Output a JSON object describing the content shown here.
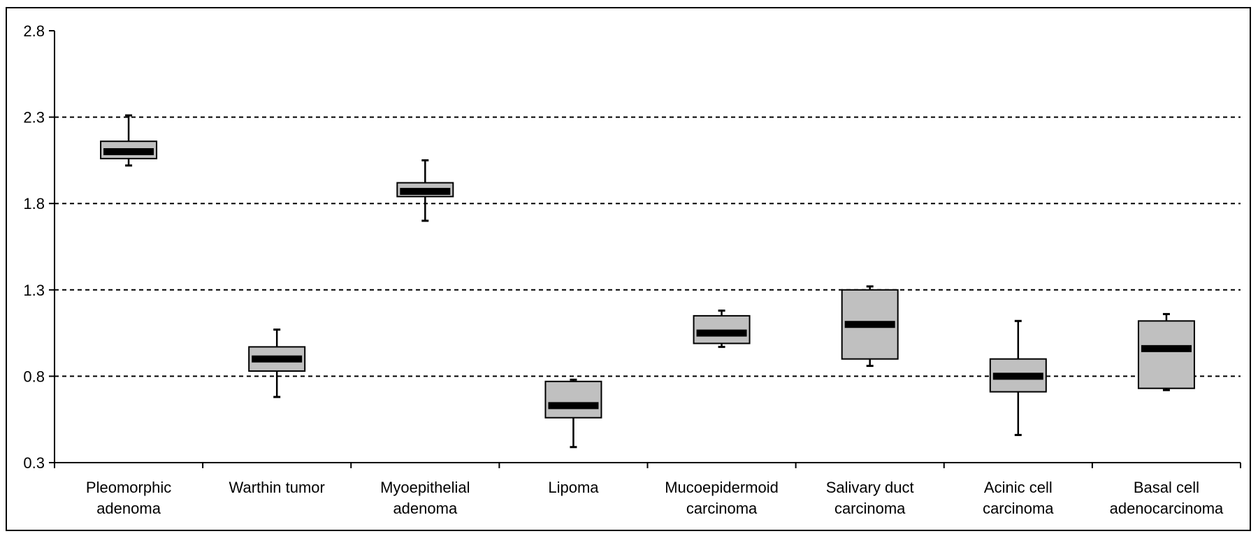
{
  "chart_data": {
    "type": "box",
    "title": "",
    "xlabel": "",
    "ylabel": "",
    "ylim": [
      0.3,
      2.8
    ],
    "yticks": [
      "0.3",
      "0.8",
      "1.3",
      "1.8",
      "2.3",
      "2.8"
    ],
    "grid": "horizontal dashed at 0.8, 1.3, 1.8, 2.3",
    "categories": [
      [
        "Pleomorphic",
        "adenoma"
      ],
      [
        "Warthin tumor"
      ],
      [
        "Myoepithelial",
        "adenoma"
      ],
      [
        "Lipoma"
      ],
      [
        "Mucoepidermoid",
        "carcinoma"
      ],
      [
        "Salivary duct",
        "carcinoma"
      ],
      [
        "Acinic cell",
        "carcinoma"
      ],
      [
        "Basal cell",
        "adenocarcinoma"
      ]
    ],
    "boxes": [
      {
        "min": 2.02,
        "q1": 2.06,
        "median": 2.1,
        "q3": 2.16,
        "max": 2.31
      },
      {
        "min": 0.68,
        "q1": 0.83,
        "median": 0.9,
        "q3": 0.97,
        "max": 1.07
      },
      {
        "min": 1.7,
        "q1": 1.84,
        "median": 1.87,
        "q3": 1.92,
        "max": 2.05
      },
      {
        "min": 0.39,
        "q1": 0.56,
        "median": 0.63,
        "q3": 0.77,
        "max": 0.78
      },
      {
        "min": 0.97,
        "q1": 0.99,
        "median": 1.05,
        "q3": 1.15,
        "max": 1.18
      },
      {
        "min": 0.86,
        "q1": 0.9,
        "median": 1.1,
        "q3": 1.3,
        "max": 1.32
      },
      {
        "min": 0.46,
        "q1": 0.71,
        "median": 0.8,
        "q3": 0.9,
        "max": 1.12
      },
      {
        "min": 0.72,
        "q1": 0.73,
        "median": 0.96,
        "q3": 1.12,
        "max": 1.16
      }
    ],
    "colors": {
      "box_fill": "#c0c0c0",
      "median": "#000000",
      "grid": "#000000",
      "axis": "#000000"
    }
  }
}
